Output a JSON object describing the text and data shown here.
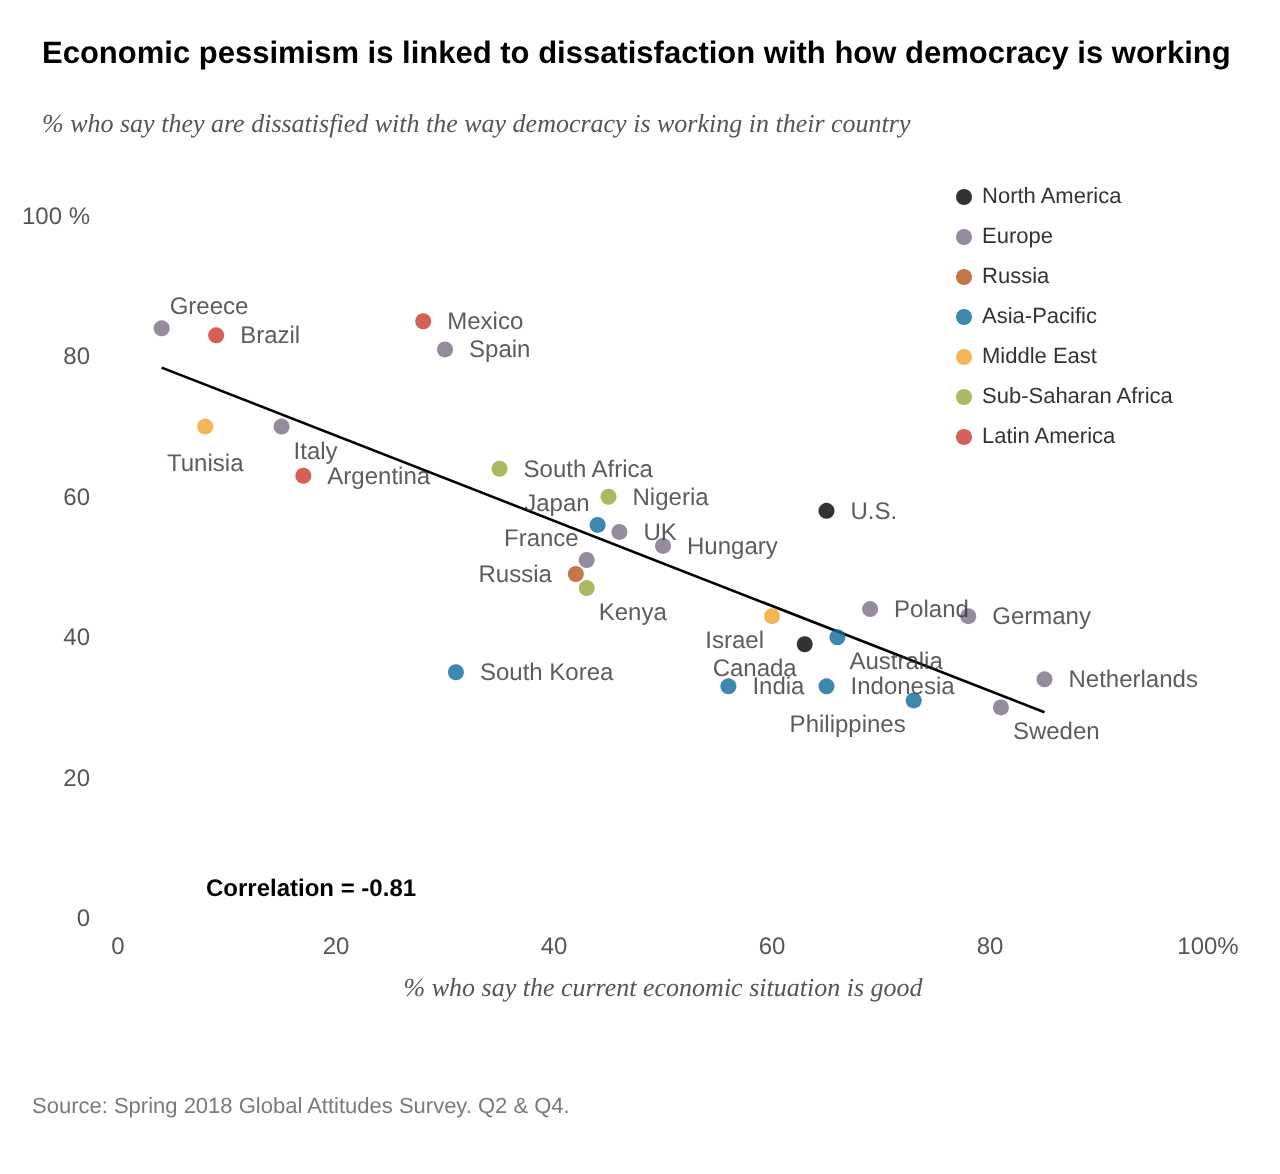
{
  "chart_data": {
    "type": "scatter",
    "title": "Economic pessimism is linked to dissatisfaction with how democracy is working",
    "subtitle": "% who say they are dissatisfied with the way democracy is working in their country",
    "xlabel": "% who say the current economic situation is good",
    "xlim": [
      0,
      100
    ],
    "ylim": [
      0,
      100
    ],
    "xticks": [
      0,
      20,
      40,
      60,
      80,
      {
        "value": 100,
        "label": "100%"
      }
    ],
    "yticks": [
      0,
      20,
      40,
      60,
      80,
      {
        "value": 100,
        "label": "100 %"
      }
    ],
    "grid": false,
    "legend": "top right",
    "marker": "circle",
    "series": [
      {
        "name": "North America",
        "color": "#000000",
        "x": [
          65,
          63
        ],
        "values": [
          58,
          39
        ],
        "value_labels": [
          "U.S.",
          "Canada"
        ]
      },
      {
        "name": "Europe",
        "color": "#7a6e87",
        "x": [
          4,
          30,
          15,
          46,
          50,
          43,
          69,
          78,
          81,
          85
        ],
        "values": [
          84,
          81,
          70,
          55,
          53,
          51,
          44,
          43,
          30,
          34
        ],
        "value_labels": [
          "Greece",
          "Spain",
          "Italy",
          "UK",
          "Hungary",
          "France",
          "Poland",
          "Germany",
          "Sweden",
          "Netherlands"
        ]
      },
      {
        "name": "Russia",
        "color": "#b5561b",
        "x": [
          42
        ],
        "values": [
          49
        ],
        "value_labels": [
          "Russia"
        ]
      },
      {
        "name": "Asia-Pacific",
        "color": "#0c6a9b",
        "x": [
          44,
          66,
          31,
          56,
          65,
          73
        ],
        "values": [
          56,
          40,
          35,
          33,
          33,
          31
        ],
        "value_labels": [
          "Japan",
          "Australia",
          "South Korea",
          "India",
          "Indonesia",
          "Philippines"
        ]
      },
      {
        "name": "Middle East",
        "color": "#f0a430",
        "x": [
          8,
          60
        ],
        "values": [
          70,
          43
        ],
        "value_labels": [
          "Tunisia",
          "Israel"
        ]
      },
      {
        "name": "Sub-Saharan Africa",
        "color": "#97a63b",
        "x": [
          35,
          45,
          43
        ],
        "values": [
          64,
          60,
          47
        ],
        "value_labels": [
          "South Africa",
          "Nigeria",
          "Kenya"
        ]
      },
      {
        "name": "Latin America",
        "color": "#c93a2c",
        "x": [
          9,
          28,
          17
        ],
        "values": [
          83,
          85,
          63
        ],
        "value_labels": [
          "Brazil",
          "Mexico",
          "Argentina"
        ]
      },
      {
        "type": "line",
        "color": "#000000",
        "x": [
          4,
          85
        ],
        "values": [
          78.4,
          29.3
        ],
        "marker": "none",
        "line_style": "solid"
      }
    ],
    "annotations": [
      "Correlation = -0.81",
      "Source: Spring 2018 Global Attitudes Survey. Q2 & Q4."
    ]
  }
}
